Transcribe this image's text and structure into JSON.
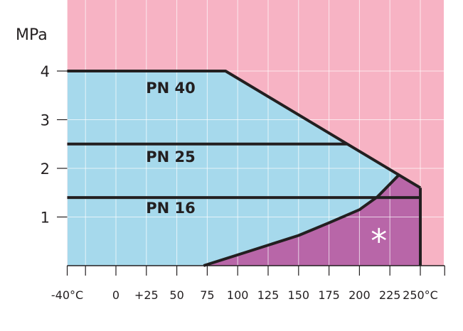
{
  "chart_data": {
    "type": "area",
    "title": "",
    "ylabel": "MPa",
    "xlabel": "",
    "xlim": [
      -40,
      270
    ],
    "ylim": [
      0,
      5.45
    ],
    "grid": true,
    "x_ticks": [
      -40,
      -25,
      0,
      25,
      50,
      75,
      100,
      125,
      150,
      175,
      200,
      225,
      250,
      270
    ],
    "x_tick_labels": [
      {
        "value": -40,
        "label": "-40°C"
      },
      {
        "value": 0,
        "label": "0"
      },
      {
        "value": 25,
        "label": "+25"
      },
      {
        "value": 50,
        "label": "50"
      },
      {
        "value": 75,
        "label": "75"
      },
      {
        "value": 100,
        "label": "100"
      },
      {
        "value": 125,
        "label": "125"
      },
      {
        "value": 150,
        "label": "150"
      },
      {
        "value": 175,
        "label": "175"
      },
      {
        "value": 200,
        "label": "200"
      },
      {
        "value": 225,
        "label": "225"
      },
      {
        "value": 250,
        "label": "250°C"
      }
    ],
    "y_ticks": [
      {
        "value": 1,
        "label": "1"
      },
      {
        "value": 2,
        "label": "2"
      },
      {
        "value": 3,
        "label": "3"
      },
      {
        "value": 4,
        "label": "4"
      }
    ],
    "series": [
      {
        "name": "PN 40",
        "points": [
          [
            -40,
            4
          ],
          [
            90,
            4
          ],
          [
            250,
            1.6
          ]
        ],
        "label_at": [
          45,
          3.55
        ]
      },
      {
        "name": "PN 25",
        "points": [
          [
            -40,
            2.5
          ],
          [
            190,
            2.5
          ]
        ],
        "label_at": [
          45,
          2.13
        ]
      },
      {
        "name": "PN 16",
        "points": [
          [
            -40,
            1.4
          ],
          [
            250,
            1.4
          ]
        ],
        "label_at": [
          45,
          1.08
        ]
      }
    ],
    "envelope": [
      [
        -40,
        0
      ],
      [
        -40,
        4
      ],
      [
        90,
        4
      ],
      [
        250,
        1.6
      ],
      [
        250,
        0
      ]
    ],
    "limit_curve": [
      [
        72,
        0
      ],
      [
        110,
        0.3
      ],
      [
        150,
        0.62
      ],
      [
        175,
        0.88
      ],
      [
        200,
        1.15
      ],
      [
        215,
        1.42
      ],
      [
        233,
        1.88
      ]
    ],
    "annotation": {
      "text": "*",
      "at": [
        216,
        0.62
      ]
    },
    "colors": {
      "background": "#f7b3c4",
      "allowed": "#a6d9ec",
      "special": "#b866a8",
      "line": "#231f20",
      "grid": "#ffffff"
    }
  }
}
